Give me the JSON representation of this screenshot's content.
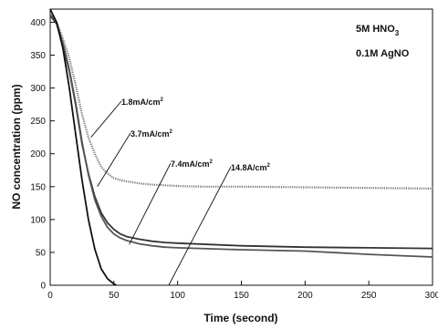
{
  "chart_data": {
    "type": "line",
    "xlabel": "Time (second)",
    "ylabel": "NO concentration (ppm)",
    "xlim": [
      0,
      300
    ],
    "ylim": [
      0,
      420
    ],
    "xticks": [
      0,
      50,
      100,
      150,
      200,
      250,
      300
    ],
    "yticks": [
      0,
      50,
      100,
      150,
      200,
      250,
      300,
      350,
      400
    ],
    "grid": false,
    "legend": {
      "placement": "top-right",
      "line1": {
        "text": "5M HNO",
        "sub": "3"
      },
      "line2": {
        "text": "0.1M AgNO"
      }
    },
    "series": [
      {
        "name": "1.8mA/cm²",
        "label": {
          "text": "1.8mA/cm",
          "sup": "2"
        },
        "style": "dotted",
        "color": "#777777",
        "x": [
          0,
          5,
          10,
          15,
          20,
          25,
          30,
          35,
          40,
          45,
          50,
          55,
          60,
          70,
          80,
          90,
          100,
          120,
          150,
          200,
          250,
          300
        ],
        "y": [
          410,
          400,
          375,
          345,
          305,
          260,
          225,
          200,
          180,
          170,
          163,
          160,
          158,
          155,
          153,
          152,
          151,
          150,
          150,
          149,
          148,
          147
        ]
      },
      {
        "name": "3.7mA/cm²",
        "label": {
          "text": "3.7mA/cm",
          "sup": "2"
        },
        "style": "solid",
        "color": "#333333",
        "x": [
          0,
          5,
          10,
          15,
          20,
          25,
          30,
          35,
          40,
          45,
          50,
          55,
          60,
          70,
          80,
          90,
          100,
          150,
          200,
          250,
          300
        ],
        "y": [
          410,
          398,
          365,
          325,
          275,
          215,
          170,
          135,
          110,
          95,
          85,
          78,
          74,
          70,
          67,
          65,
          64,
          60,
          58,
          57,
          56
        ]
      },
      {
        "name": "7.4mA/cm²",
        "label": {
          "text": "7.4mA/cm",
          "sup": "2"
        },
        "style": "solid",
        "color": "#555555",
        "x": [
          0,
          5,
          10,
          15,
          20,
          25,
          30,
          35,
          40,
          45,
          50,
          55,
          60,
          70,
          80,
          90,
          100,
          150,
          200,
          250,
          300
        ],
        "y": [
          412,
          400,
          368,
          328,
          278,
          218,
          168,
          130,
          105,
          88,
          78,
          72,
          68,
          63,
          60,
          58,
          57,
          54,
          52,
          47,
          43
        ]
      },
      {
        "name": "14.8A/cm²",
        "label": {
          "text": "14.8A/cm",
          "sup": "2"
        },
        "style": "solid",
        "color": "#111111",
        "x": [
          0,
          5,
          10,
          15,
          20,
          25,
          30,
          35,
          40,
          45,
          50,
          52
        ],
        "y": [
          420,
          400,
          360,
          300,
          230,
          160,
          100,
          55,
          25,
          10,
          2,
          0
        ]
      }
    ],
    "annotations": [
      {
        "series_index": 0,
        "point": [
          32,
          225
        ]
      },
      {
        "series_index": 1,
        "point": [
          37,
          150
        ]
      },
      {
        "series_index": 2,
        "point": [
          62,
          62
        ]
      },
      {
        "series_index": 3,
        "point": [
          93,
          0
        ]
      }
    ]
  }
}
